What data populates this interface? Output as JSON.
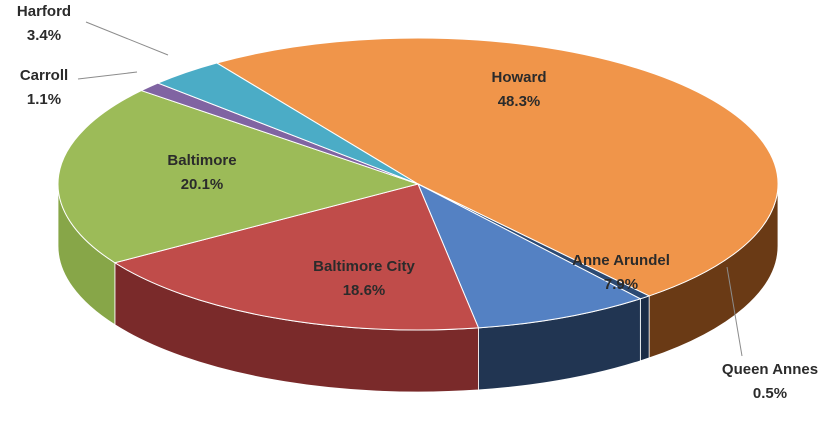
{
  "chart_data": {
    "type": "pie",
    "style": "3d",
    "title": "",
    "start_angle_deg": 236,
    "direction": "clockwise",
    "series": [
      {
        "name": "",
        "slices": [
          {
            "label": "Howard",
            "percent_label": "48.3%",
            "value": 48.3,
            "color": "#F0954A",
            "side_color": "#6A3A15"
          },
          {
            "label": "Queen Annes",
            "percent_label": "0.5%",
            "value": 0.5,
            "color": "#2C4A73",
            "side_color": "#1B2C46"
          },
          {
            "label": "Anne Arundel",
            "percent_label": "7.9%",
            "value": 7.9,
            "color": "#5481C3",
            "side_color": "#213552"
          },
          {
            "label": "Baltimore City",
            "percent_label": "18.6%",
            "value": 18.6,
            "color": "#C04C4A",
            "side_color": "#7A2A2A"
          },
          {
            "label": "Baltimore",
            "percent_label": "20.1%",
            "value": 20.1,
            "color": "#9CBB58",
            "side_color": "#87A648"
          },
          {
            "label": "Carroll",
            "percent_label": "1.1%",
            "value": 1.1,
            "color": "#8064A2",
            "side_color": "#5A4575"
          },
          {
            "label": "Harford",
            "percent_label": "3.4%",
            "value": 3.4,
            "color": "#4BACC6",
            "side_color": "#2F7487"
          }
        ]
      }
    ]
  }
}
